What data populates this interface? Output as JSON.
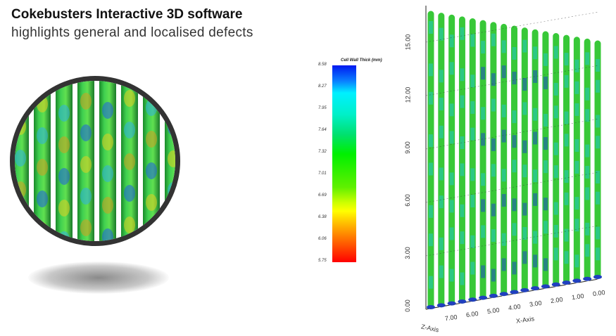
{
  "header": {
    "title": "Cokebusters Interactive 3D software",
    "subtitle": "highlights general and localised defects"
  },
  "legend": {
    "title": "Cell Wall Thick (mm)",
    "ticks": [
      "8.58",
      "8.27",
      "7.95",
      "7.64",
      "7.32",
      "7.01",
      "6.69",
      "6.38",
      "6.06",
      "5.75"
    ]
  },
  "plot": {
    "y_ticks": [
      "0.00",
      "3.00",
      "6.00",
      "9.00",
      "12.00",
      "15.00"
    ],
    "x_ticks": [
      "7.00",
      "6.00",
      "5.00",
      "4.00",
      "3.00",
      "2.00",
      "1.00",
      "0.00"
    ],
    "x_label": "X-Axis",
    "z_label": "Z-Axis"
  }
}
